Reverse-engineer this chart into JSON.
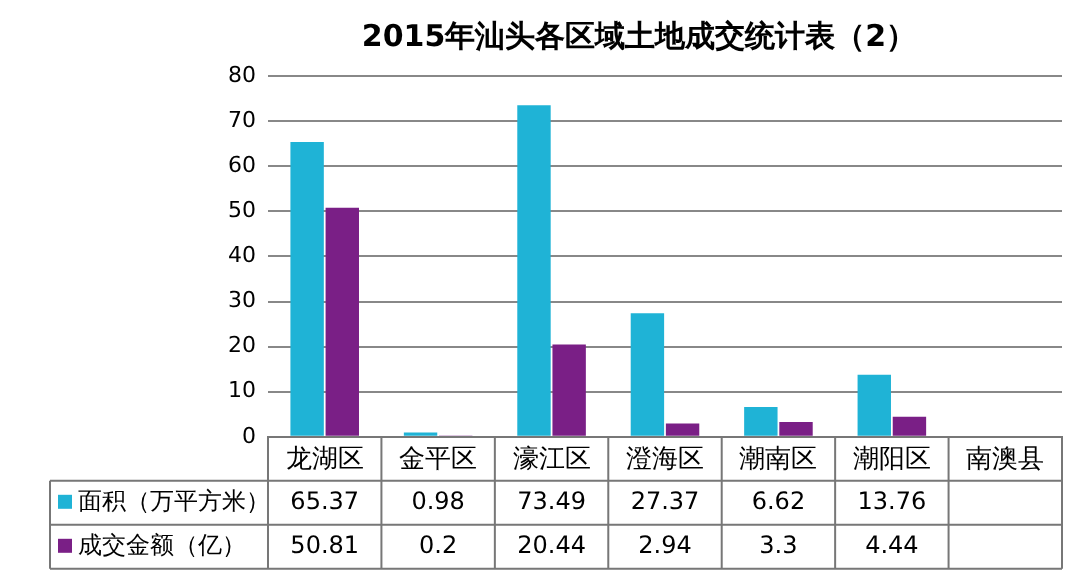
{
  "chart_data": {
    "type": "bar",
    "title": "2015年汕头各区域土地成交统计表（2）",
    "categories": [
      "龙湖区",
      "金平区",
      "濠江区",
      "澄海区",
      "潮南区",
      "潮阳区",
      "南澳县"
    ],
    "series": [
      {
        "name": "面积（万平方米）",
        "color": "#1fb3d6",
        "values": [
          65.37,
          0.98,
          73.49,
          27.37,
          6.62,
          13.76,
          null
        ]
      },
      {
        "name": "成交金额（亿）",
        "color": "#7a1f86",
        "values": [
          50.81,
          0.2,
          20.44,
          2.94,
          3.3,
          4.44,
          null
        ]
      }
    ],
    "ylim": [
      0,
      80
    ],
    "yticks": [
      0,
      10,
      20,
      30,
      40,
      50,
      60,
      70,
      80
    ],
    "grid": "y",
    "legend": "bottom",
    "data_labels": true
  }
}
